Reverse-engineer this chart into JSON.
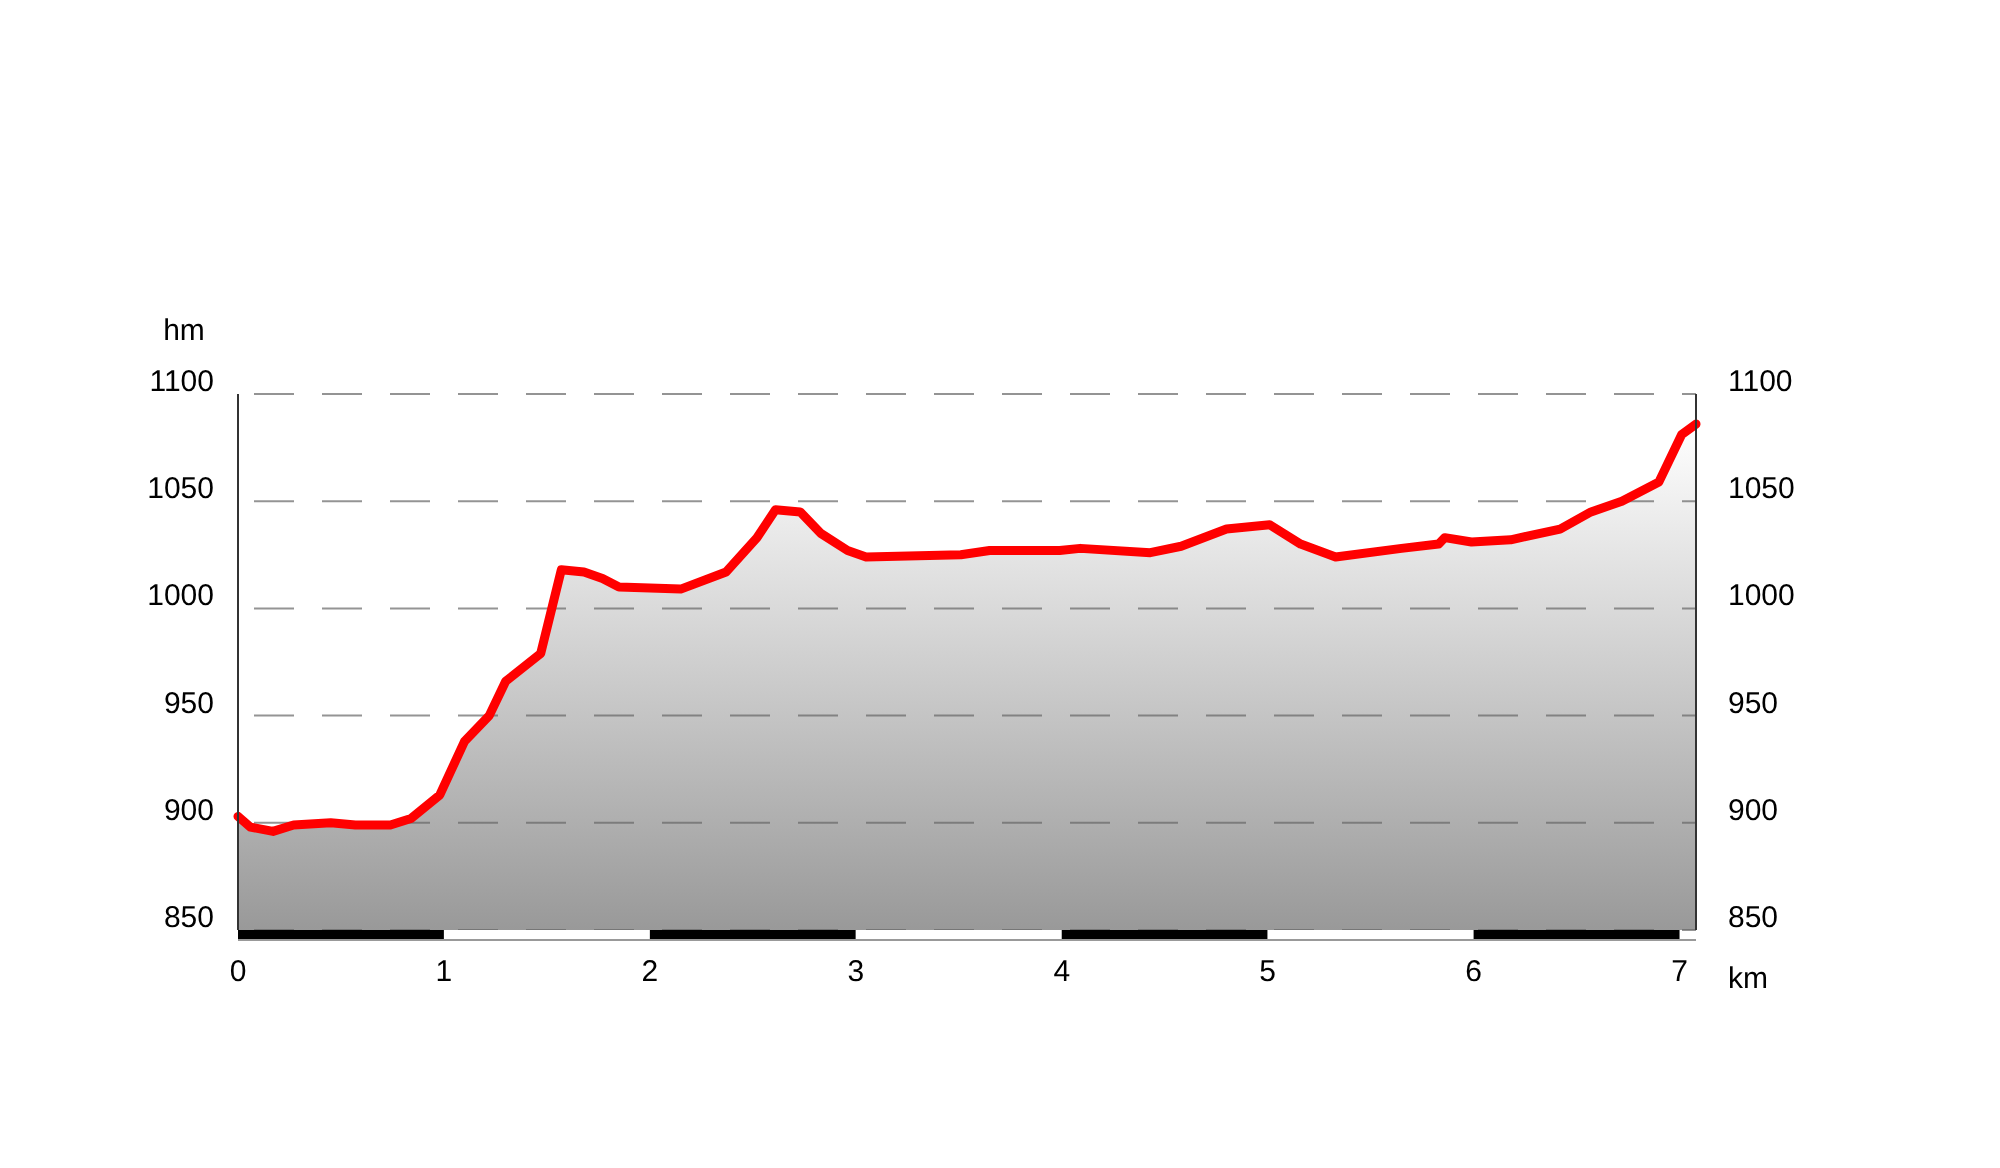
{
  "chart_data": {
    "type": "area",
    "xlabel": "km",
    "ylabel": "hm",
    "xlim": [
      0,
      7.08
    ],
    "xticks": [
      0,
      1,
      2,
      3,
      4,
      5,
      6,
      7
    ],
    "ylim": [
      850,
      1100
    ],
    "yticks": [
      850,
      900,
      950,
      1000,
      1050,
      1100
    ],
    "y2lim": [
      850,
      1100
    ],
    "y2ticks": [
      850,
      900,
      950,
      1000,
      1050,
      1100
    ],
    "grid": "y",
    "line_style": "solid",
    "series": [
      {
        "color": "#ff0000",
        "x": [
          0,
          0.06,
          0.17,
          0.27,
          0.45,
          0.57,
          0.74,
          0.84,
          0.98,
          1.1,
          1.22,
          1.3,
          1.47,
          1.57,
          1.68,
          1.77,
          1.85,
          2.15,
          2.37,
          2.52,
          2.61,
          2.73,
          2.83,
          2.96,
          3.05,
          3.51,
          3.65,
          3.99,
          4.09,
          4.43,
          4.58,
          4.8,
          5.01,
          5.16,
          5.33,
          5.65,
          5.83,
          5.86,
          5.99,
          6.18,
          6.42,
          6.57,
          6.72,
          6.9,
          7.01,
          7.08
        ],
        "values": [
          903,
          898,
          896,
          899,
          900,
          899,
          899,
          902,
          913,
          938,
          950,
          966,
          979,
          1018,
          1017,
          1014,
          1010,
          1009,
          1017,
          1033,
          1046,
          1045,
          1035,
          1027,
          1024,
          1025,
          1027,
          1027,
          1028,
          1026,
          1029,
          1037,
          1039,
          1030,
          1024,
          1028,
          1030,
          1033,
          1031,
          1032,
          1037,
          1045,
          1050,
          1059,
          1081,
          1086
        ]
      }
    ]
  }
}
